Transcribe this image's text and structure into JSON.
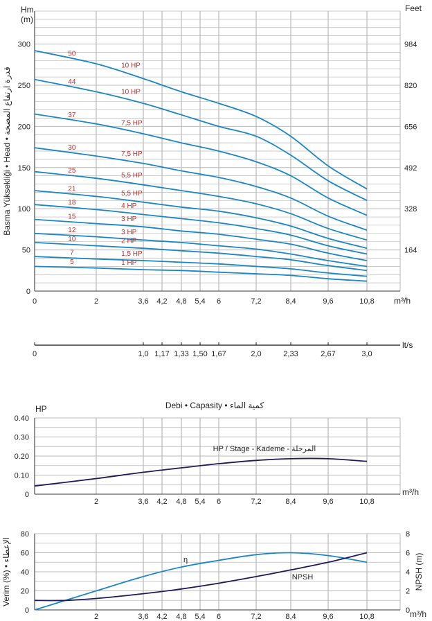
{
  "colors": {
    "head_curve": "#1b86c2",
    "hp_curve": "#1f1a55",
    "efficiency_curve": "#1b86c2",
    "npsh_curve": "#1f1a55",
    "curve_labels": "#b0302c",
    "grid": "#b8b8b8"
  },
  "chart_data": [
    {
      "type": "line",
      "id": "head",
      "unit_left": "Hm\n(m)",
      "unit_right": "Feet",
      "ylabel": "Basma Yüksekliği • Head • قدرة ارتفاع المضخة",
      "xlabel": "m³/h",
      "x_ticks": [
        "0",
        "2",
        "3,6",
        "4,2",
        "4,8",
        "5,4",
        "6",
        "7,2",
        "8,4",
        "9,6",
        "10,8"
      ],
      "xlim": [
        0,
        12
      ],
      "ylim": [
        0,
        340
      ],
      "y_ticks": [
        0,
        50,
        100,
        150,
        200,
        250,
        300
      ],
      "y_right_ticks": [
        {
          "value": 50,
          "label": "164"
        },
        {
          "value": 100,
          "label": "328"
        },
        {
          "value": 150,
          "label": "492"
        },
        {
          "value": 200,
          "label": "656"
        },
        {
          "value": 250,
          "label": "820"
        },
        {
          "value": 300,
          "label": "984"
        }
      ],
      "series": [
        {
          "name": "50",
          "hp": "10 HP",
          "x": [
            0,
            2,
            3.6,
            4.8,
            6,
            7.2,
            8.4,
            9.6,
            10.8
          ],
          "y": [
            292,
            276,
            258,
            242,
            228,
            212,
            188,
            152,
            124
          ]
        },
        {
          "name": "44",
          "hp": "10 HP",
          "x": [
            0,
            2,
            3.6,
            4.8,
            6,
            7.2,
            8.4,
            9.6,
            10.8
          ],
          "y": [
            257,
            242,
            228,
            214,
            200,
            188,
            165,
            134,
            110
          ]
        },
        {
          "name": "37",
          "hp": "7,5 HP",
          "x": [
            0,
            2,
            3.6,
            4.8,
            6,
            7.2,
            8.4,
            9.6,
            10.8
          ],
          "y": [
            215,
            203,
            191,
            180,
            170,
            157,
            140,
            113,
            92
          ]
        },
        {
          "name": "30",
          "hp": "7,5 HP",
          "x": [
            0,
            2,
            3.6,
            4.8,
            6,
            7.2,
            8.4,
            9.6,
            10.8
          ],
          "y": [
            174,
            164,
            155,
            146,
            138,
            127,
            113,
            91,
            74
          ]
        },
        {
          "name": "25",
          "hp": "5,5 HP",
          "x": [
            0,
            2,
            3.6,
            4.8,
            6,
            7.2,
            8.4,
            9.6,
            10.8
          ],
          "y": [
            145,
            137,
            129,
            122,
            115,
            106,
            94,
            76,
            62
          ]
        },
        {
          "name": "21",
          "hp": "5,5 HP",
          "x": [
            0,
            2,
            3.6,
            4.8,
            6,
            7.2,
            8.4,
            9.6,
            10.8
          ],
          "y": [
            122,
            115,
            108,
            102,
            97,
            89,
            79,
            64,
            52
          ]
        },
        {
          "name": "18",
          "hp": "4 HP",
          "x": [
            0,
            2,
            3.6,
            4.8,
            6,
            7.2,
            8.4,
            9.6,
            10.8
          ],
          "y": [
            105,
            99,
            93,
            88,
            83,
            76,
            68,
            55,
            45
          ]
        },
        {
          "name": "15",
          "hp": "3 HP",
          "x": [
            0,
            2,
            3.6,
            4.8,
            6,
            7.2,
            8.4,
            9.6,
            10.8
          ],
          "y": [
            87,
            82,
            78,
            73,
            69,
            63,
            57,
            46,
            37
          ]
        },
        {
          "name": "12",
          "hp": "3 HP",
          "x": [
            0,
            2,
            3.6,
            4.8,
            6,
            7.2,
            8.4,
            9.6,
            10.8
          ],
          "y": [
            70,
            66,
            62,
            59,
            55,
            51,
            45,
            37,
            30
          ]
        },
        {
          "name": "10",
          "hp": "2 HP",
          "x": [
            0,
            2,
            3.6,
            4.8,
            6,
            7.2,
            8.4,
            9.6,
            10.8
          ],
          "y": [
            59,
            55,
            52,
            49,
            46,
            42,
            38,
            31,
            25
          ]
        },
        {
          "name": "7",
          "hp": "1,5 HP",
          "x": [
            0,
            2,
            3.6,
            4.8,
            6,
            7.2,
            8.4,
            9.6,
            10.8
          ],
          "y": [
            42,
            39,
            37,
            35,
            33,
            30,
            27,
            22,
            18
          ]
        },
        {
          "name": "5",
          "hp": "1 HP",
          "x": [
            0,
            2,
            3.6,
            4.8,
            6,
            7.2,
            8.4,
            9.6,
            10.8
          ],
          "y": [
            30,
            28,
            26,
            25,
            23,
            21,
            19,
            15,
            12
          ]
        }
      ]
    },
    {
      "type": "axis",
      "id": "lts",
      "unit": "lt/s",
      "ticks": [
        "0",
        "1,0",
        "1,17",
        "1,33",
        "1,50",
        "1,67",
        "2,0",
        "2,33",
        "2,67",
        "3,0"
      ]
    },
    {
      "type": "line",
      "id": "hp",
      "title": "Debi • Capasity • كمية الماء",
      "unit_left": "HP",
      "annotation": "HP / Stage - Kademe - المرحلة",
      "xlabel": "m³/h",
      "x_ticks": [
        "2",
        "3,6",
        "4,2",
        "4,8",
        "5,4",
        "6",
        "7,2",
        "8,4",
        "9,6",
        "10,8"
      ],
      "xlim": [
        0,
        12
      ],
      "ylim": [
        0,
        0.4
      ],
      "y_ticks": [
        "0",
        "0.10",
        "0.20",
        "0.30",
        "0.40"
      ],
      "series": [
        {
          "name": "HP / Stage",
          "x": [
            0,
            2,
            3.6,
            4.8,
            6,
            7.2,
            8.4,
            9.6,
            10.8
          ],
          "y": [
            0.043,
            0.082,
            0.115,
            0.138,
            0.16,
            0.177,
            0.186,
            0.186,
            0.172
          ]
        }
      ]
    },
    {
      "type": "line",
      "id": "efficiency",
      "ylabel_left": "Verim (%) • الإعطاء",
      "ylabel_right": "NPSH (m)",
      "xlabel": "m³/h",
      "x_ticks": [
        "2",
        "3,6",
        "4,2",
        "4,8",
        "5,4",
        "6",
        "7,2",
        "8,4",
        "9,6",
        "10,8"
      ],
      "xlim": [
        0,
        12
      ],
      "ylim_left": [
        0,
        80
      ],
      "ylim_right": [
        0,
        8
      ],
      "y_ticks": [
        0,
        20,
        40,
        60,
        80
      ],
      "y_right_ticks": [
        0,
        2,
        4,
        6,
        8
      ],
      "series": [
        {
          "name": "η",
          "axis": "left",
          "x": [
            0,
            2,
            3.6,
            4.8,
            6,
            7.2,
            8.4,
            9.6,
            10.8
          ],
          "y": [
            0,
            20,
            35,
            45,
            52,
            58,
            60,
            57,
            50
          ]
        },
        {
          "name": "NPSH",
          "axis": "right",
          "x": [
            0,
            1,
            2,
            3.6,
            4.8,
            6,
            7.2,
            8.4,
            9.6,
            10.8
          ],
          "y": [
            1.0,
            1.0,
            1.2,
            1.7,
            2.2,
            2.8,
            3.5,
            4.2,
            5.0,
            6.0
          ]
        }
      ]
    }
  ]
}
